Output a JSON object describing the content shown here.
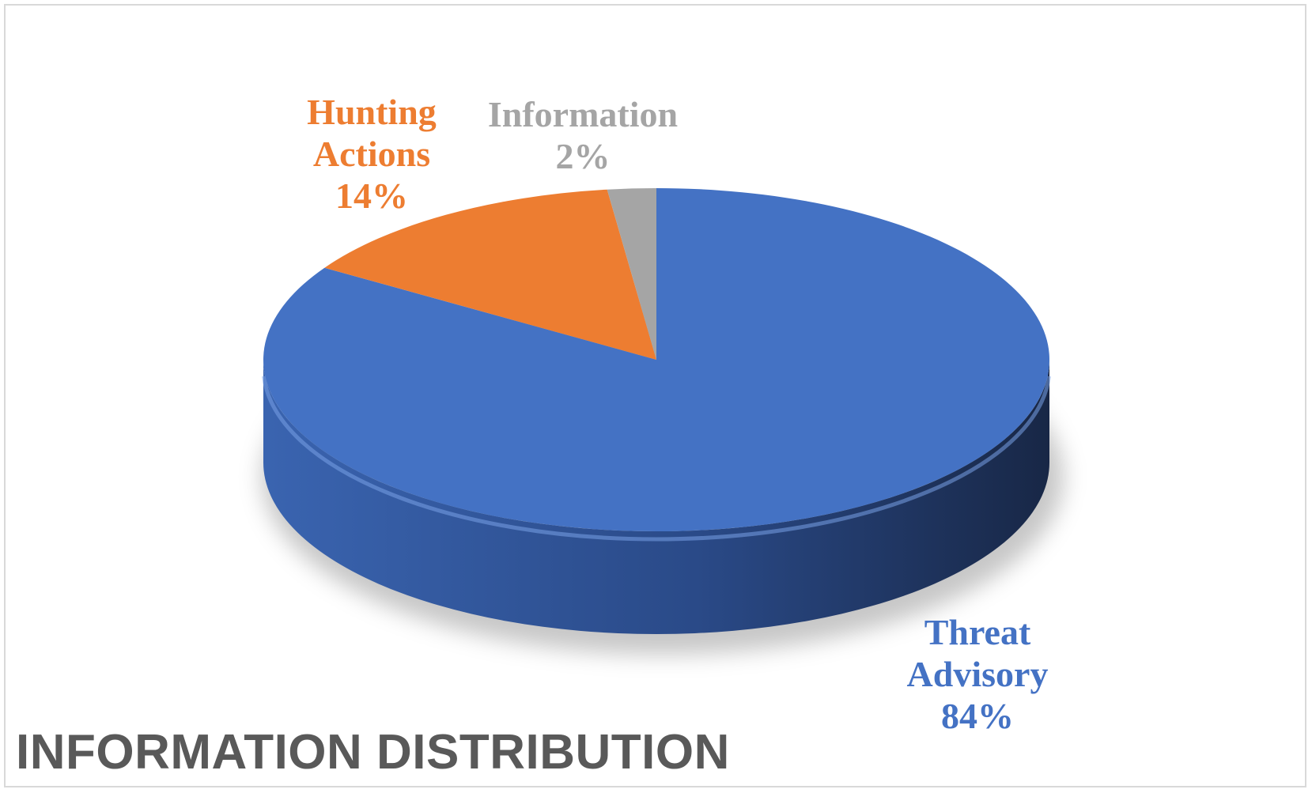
{
  "chart_data": {
    "type": "pie",
    "style": "3d",
    "title": "INFORMATION DISTRIBUTION",
    "legend": "none",
    "slices": [
      {
        "name": "Threat Advisory",
        "name_lines": [
          "Threat",
          "Advisory"
        ],
        "value": 84,
        "label": "84%",
        "color": "#4472c4",
        "side_dark": "#1b2a4d",
        "side_light": "#3e68b4"
      },
      {
        "name": "Hunting Actions",
        "name_lines": [
          "Hunting",
          "Actions"
        ],
        "value": 14,
        "label": "14%",
        "color": "#ed7d31",
        "side_dark": "#8a4519",
        "side_light": "#c9672a"
      },
      {
        "name": "Information",
        "name_lines": [
          "Information"
        ],
        "value": 2,
        "label": "2%",
        "color": "#a5a5a5",
        "side_dark": "#5e5e5e",
        "side_light": "#8c8c8c"
      }
    ],
    "title_color": "#595959"
  }
}
